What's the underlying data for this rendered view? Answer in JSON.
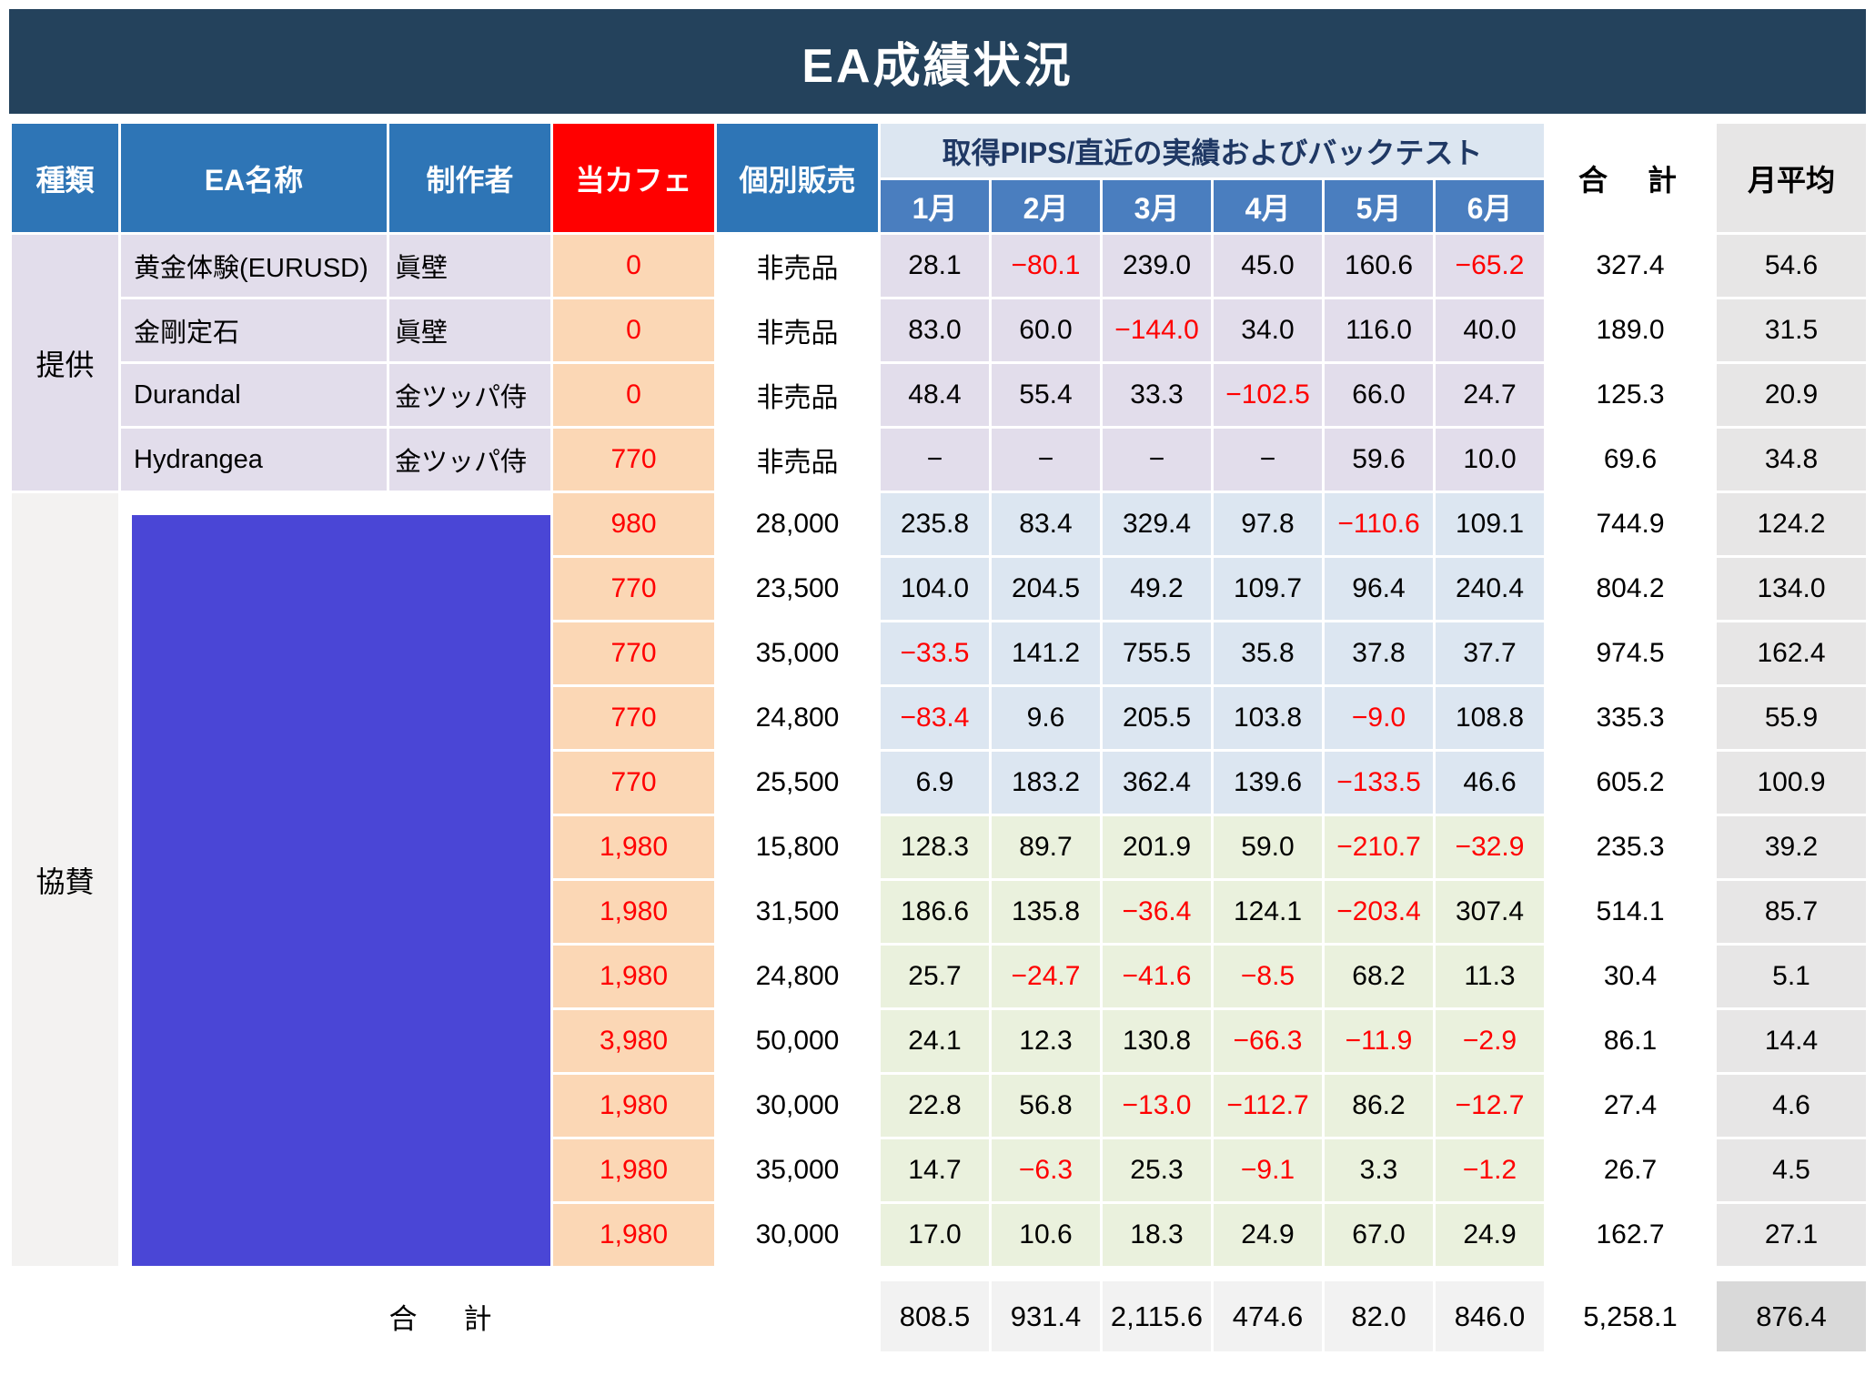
{
  "title": "EA成績状況",
  "colors": {
    "title_bg": "#24425C",
    "header_blue": "#2E75B6",
    "header_red": "#FF0000",
    "month_blue": "#4A7EBF",
    "band_blue": "#DCE6F1",
    "band_text": "#1F3864",
    "lavender": "#E2DDEB",
    "blue_row": "#DCE6F1",
    "green_row": "#EAF1DD",
    "peach": "#FBD7B5",
    "gray_col": "#E7E6E6",
    "footer_gray": "#D9D9D9",
    "footer_month_bg": "#F2F2F2",
    "sponsor_bg": "#F3F2F1",
    "redact_blue": "#4A46D6",
    "neg": "#FF0000"
  },
  "header": {
    "type": "種類",
    "ea_name": "EA名称",
    "creator": "制作者",
    "cafe": "当カフェ",
    "individual": "個別販売",
    "pips": "取得PIPS/直近の実績およびバックテスト",
    "months": [
      "1月",
      "2月",
      "3月",
      "4月",
      "5月",
      "6月"
    ],
    "total": "合　計",
    "monthly_avg": "月平均"
  },
  "groups": [
    {
      "type_label": "提供",
      "redacted": false,
      "rows": [
        {
          "name": "黄金体験(EURUSD)",
          "creator": "眞壁",
          "cafe": "0",
          "price": "非売品",
          "tint": "lav",
          "months": [
            "28.1",
            "−80.1",
            "239.0",
            "45.0",
            "160.6",
            "−65.2"
          ],
          "total": "327.4",
          "avg": "54.6"
        },
        {
          "name": "金剛定石",
          "creator": "眞壁",
          "cafe": "0",
          "price": "非売品",
          "tint": "lav",
          "months": [
            "83.0",
            "60.0",
            "−144.0",
            "34.0",
            "116.0",
            "40.0"
          ],
          "total": "189.0",
          "avg": "31.5"
        },
        {
          "name": "Durandal",
          "creator": "金ツッパ侍",
          "cafe": "0",
          "price": "非売品",
          "tint": "lav",
          "months": [
            "48.4",
            "55.4",
            "33.3",
            "−102.5",
            "66.0",
            "24.7"
          ],
          "total": "125.3",
          "avg": "20.9"
        },
        {
          "name": "Hydrangea",
          "creator": "金ツッパ侍",
          "cafe": "770",
          "price": "非売品",
          "tint": "lav",
          "months": [
            "−",
            "−",
            "−",
            "−",
            "59.6",
            "10.0"
          ],
          "total": "69.6",
          "avg": "34.8"
        }
      ]
    },
    {
      "type_label": "協賛",
      "redacted": true,
      "rows": [
        {
          "cafe": "980",
          "price": "28,000",
          "tint": "blue",
          "months": [
            "235.8",
            "83.4",
            "329.4",
            "97.8",
            "−110.6",
            "109.1"
          ],
          "total": "744.9",
          "avg": "124.2"
        },
        {
          "cafe": "770",
          "price": "23,500",
          "tint": "blue",
          "months": [
            "104.0",
            "204.5",
            "49.2",
            "109.7",
            "96.4",
            "240.4"
          ],
          "total": "804.2",
          "avg": "134.0"
        },
        {
          "cafe": "770",
          "price": "35,000",
          "tint": "blue",
          "months": [
            "−33.5",
            "141.2",
            "755.5",
            "35.8",
            "37.8",
            "37.7"
          ],
          "total": "974.5",
          "avg": "162.4"
        },
        {
          "cafe": "770",
          "price": "24,800",
          "tint": "blue",
          "months": [
            "−83.4",
            "9.6",
            "205.5",
            "103.8",
            "−9.0",
            "108.8"
          ],
          "total": "335.3",
          "avg": "55.9"
        },
        {
          "cafe": "770",
          "price": "25,500",
          "tint": "blue",
          "months": [
            "6.9",
            "183.2",
            "362.4",
            "139.6",
            "−133.5",
            "46.6"
          ],
          "total": "605.2",
          "avg": "100.9"
        },
        {
          "cafe": "1,980",
          "price": "15,800",
          "tint": "green",
          "months": [
            "128.3",
            "89.7",
            "201.9",
            "59.0",
            "−210.7",
            "−32.9"
          ],
          "total": "235.3",
          "avg": "39.2"
        },
        {
          "cafe": "1,980",
          "price": "31,500",
          "tint": "green",
          "months": [
            "186.6",
            "135.8",
            "−36.4",
            "124.1",
            "−203.4",
            "307.4"
          ],
          "total": "514.1",
          "avg": "85.7"
        },
        {
          "cafe": "1,980",
          "price": "24,800",
          "tint": "green",
          "months": [
            "25.7",
            "−24.7",
            "−41.6",
            "−8.5",
            "68.2",
            "11.3"
          ],
          "total": "30.4",
          "avg": "5.1"
        },
        {
          "cafe": "3,980",
          "price": "50,000",
          "tint": "green",
          "months": [
            "24.1",
            "12.3",
            "130.8",
            "−66.3",
            "−11.9",
            "−2.9"
          ],
          "total": "86.1",
          "avg": "14.4"
        },
        {
          "cafe": "1,980",
          "price": "30,000",
          "tint": "green",
          "months": [
            "22.8",
            "56.8",
            "−13.0",
            "−112.7",
            "86.2",
            "−12.7"
          ],
          "total": "27.4",
          "avg": "4.6"
        },
        {
          "cafe": "1,980",
          "price": "35,000",
          "tint": "green",
          "months": [
            "14.7",
            "−6.3",
            "25.3",
            "−9.1",
            "3.3",
            "−1.2"
          ],
          "total": "26.7",
          "avg": "4.5"
        },
        {
          "cafe": "1,980",
          "price": "30,000",
          "tint": "green",
          "months": [
            "17.0",
            "10.6",
            "18.3",
            "24.9",
            "67.0",
            "24.9"
          ],
          "total": "162.7",
          "avg": "27.1"
        }
      ]
    }
  ],
  "footer": {
    "label": "合　計",
    "months": [
      "808.5",
      "931.4",
      "2,115.6",
      "474.6",
      "82.0",
      "846.0"
    ],
    "total": "5,258.1",
    "avg": "876.4"
  }
}
